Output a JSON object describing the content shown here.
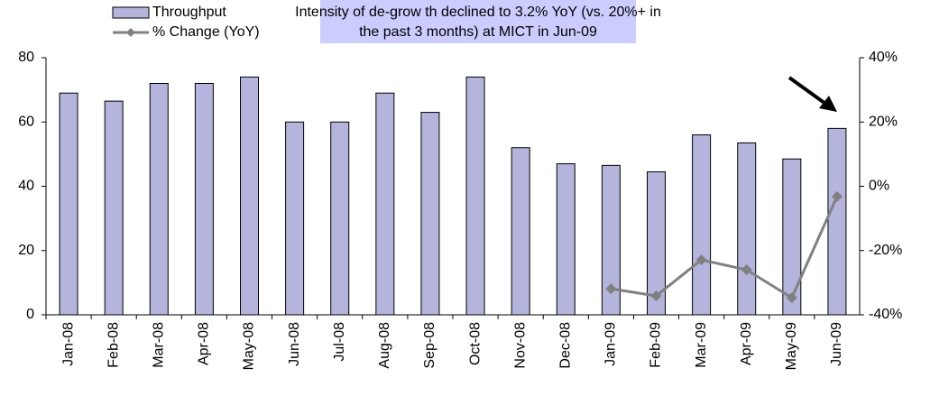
{
  "chart_data": {
    "type": "bar",
    "annotation": "Intensity of de-grow th declined to 3.2% YoY (vs. 20%+ in the past 3 months) at MICT in Jun-09",
    "categories": [
      "Jan-08",
      "Feb-08",
      "Mar-08",
      "Apr-08",
      "May-08",
      "Jun-08",
      "Jul-08",
      "Aug-08",
      "Sep-08",
      "Oct-08",
      "Nov-08",
      "Dec-08",
      "Jan-09",
      "Feb-09",
      "Mar-09",
      "Apr-09",
      "May-09",
      "Jun-09"
    ],
    "series": [
      {
        "name": "Throughput",
        "type": "bar",
        "color": "#b4b4dc",
        "values": [
          69,
          66.5,
          72,
          72,
          74,
          60,
          60,
          69,
          63,
          74,
          52,
          47,
          46.5,
          44.5,
          56,
          53.5,
          48.5,
          58
        ]
      },
      {
        "name": "% Change (YoY)",
        "type": "line",
        "axis": "y2",
        "color": "#808080",
        "values": [
          null,
          null,
          null,
          null,
          null,
          null,
          null,
          null,
          null,
          null,
          null,
          null,
          -31.9,
          -34.1,
          -22.9,
          -26,
          -34.7,
          -3.2
        ]
      }
    ],
    "ylim": [
      0,
      80
    ],
    "yticks": [
      0,
      20,
      40,
      60,
      80
    ],
    "y2lim": [
      -40,
      40
    ],
    "y2ticks": [
      {
        "value": -40,
        "label": "-40%"
      },
      {
        "value": -20,
        "label": "-20%"
      },
      {
        "value": 0,
        "label": "0%"
      },
      {
        "value": 20,
        "label": "20%"
      },
      {
        "value": 40,
        "label": "40%"
      }
    ],
    "grid": false,
    "legend": "top-left"
  }
}
